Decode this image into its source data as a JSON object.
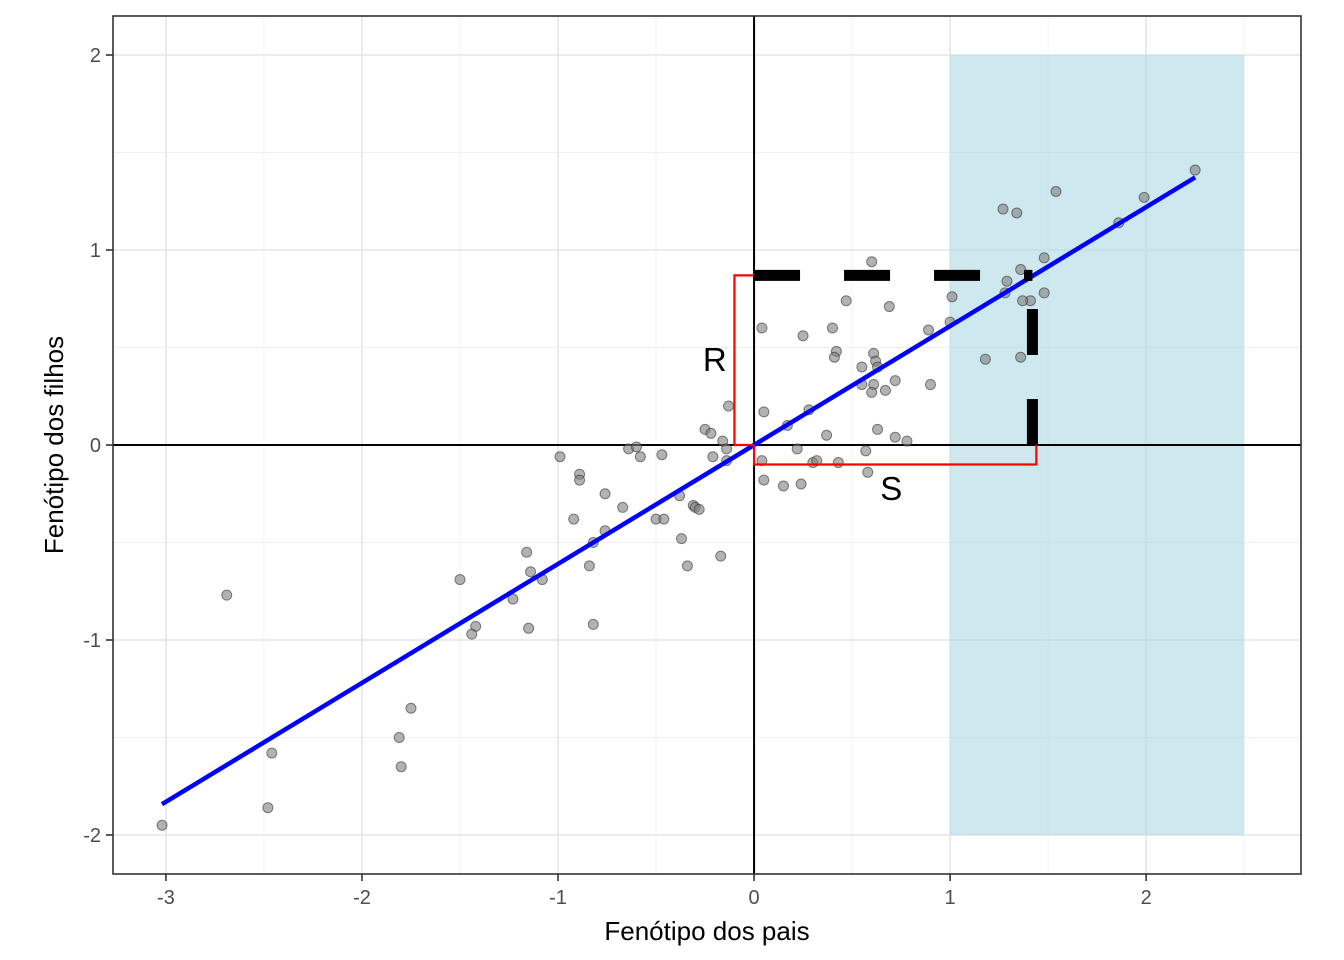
{
  "chart_data": {
    "type": "scatter",
    "xlabel": "Fenótipo dos pais",
    "ylabel": "Fenótipo dos filhos",
    "xlim": [
      -3.27,
      2.79
    ],
    "ylim": [
      -2.2,
      2.2
    ],
    "x_ticks": [
      -3,
      -2,
      -1,
      0,
      1,
      2
    ],
    "y_ticks": [
      -2,
      -1,
      0,
      1,
      2
    ],
    "x_tick_labels": [
      "-3",
      "-2",
      "-1",
      "0",
      "1",
      "2"
    ],
    "y_tick_labels": [
      "-2",
      "-1",
      "0",
      "1",
      "2"
    ],
    "grid": true,
    "colors": {
      "points": "#7f7f7f",
      "regression_line": "#0000ff",
      "selection_band": "#add8e6",
      "response_bracket": "#ff0000",
      "dashed_guides": "#000000",
      "axes_zero_lines": "#000000"
    },
    "selection_region": {
      "x": [
        1,
        2.5
      ],
      "y": [
        -2,
        2
      ]
    },
    "regression_line": {
      "slope": 0.61,
      "intercept": 0,
      "x": [
        -3.02,
        2.25
      ]
    },
    "dashed_guides": {
      "horizontal": {
        "y": 0.87,
        "x": [
          0,
          1.42
        ]
      },
      "vertical": {
        "x": 1.42,
        "y": [
          0,
          0.87
        ]
      }
    },
    "bracket_R": {
      "x": -0.1,
      "y": [
        0,
        0.87
      ]
    },
    "bracket_S": {
      "y": -0.1,
      "x": [
        0,
        1.44
      ]
    },
    "annotations": [
      {
        "text": "R",
        "x": -0.2,
        "y": 0.44
      },
      {
        "text": "S",
        "x": 0.7,
        "y": -0.22
      }
    ],
    "points": [
      [
        2.25,
        1.41
      ],
      [
        1.54,
        1.3
      ],
      [
        1.99,
        1.27
      ],
      [
        1.86,
        1.14
      ],
      [
        1.27,
        1.21
      ],
      [
        1.34,
        1.19
      ],
      [
        1.48,
        0.96
      ],
      [
        0.6,
        0.94
      ],
      [
        1.36,
        0.9
      ],
      [
        1.29,
        0.84
      ],
      [
        1.41,
        0.74
      ],
      [
        1.37,
        0.74
      ],
      [
        1.48,
        0.78
      ],
      [
        1.28,
        0.78
      ],
      [
        1.01,
        0.76
      ],
      [
        0.47,
        0.74
      ],
      [
        0.69,
        0.71
      ],
      [
        1.0,
        0.63
      ],
      [
        0.89,
        0.59
      ],
      [
        0.04,
        0.6
      ],
      [
        0.4,
        0.6
      ],
      [
        0.25,
        0.56
      ],
      [
        1.18,
        0.44
      ],
      [
        1.36,
        0.45
      ],
      [
        0.42,
        0.48
      ],
      [
        0.61,
        0.47
      ],
      [
        0.41,
        0.45
      ],
      [
        0.62,
        0.43
      ],
      [
        0.55,
        0.4
      ],
      [
        0.63,
        0.4
      ],
      [
        0.55,
        0.31
      ],
      [
        0.61,
        0.31
      ],
      [
        0.6,
        0.27
      ],
      [
        0.67,
        0.28
      ],
      [
        0.72,
        0.33
      ],
      [
        0.9,
        0.31
      ],
      [
        0.63,
        0.08
      ],
      [
        0.72,
        0.04
      ],
      [
        0.78,
        0.02
      ],
      [
        -0.13,
        0.2
      ],
      [
        0.05,
        0.17
      ],
      [
        0.28,
        0.18
      ],
      [
        0.17,
        0.1
      ],
      [
        -0.25,
        0.08
      ],
      [
        -0.22,
        0.06
      ],
      [
        -0.16,
        0.02
      ],
      [
        0.37,
        0.05
      ],
      [
        0.22,
        -0.02
      ],
      [
        -0.14,
        -0.02
      ],
      [
        0.57,
        -0.03
      ],
      [
        -0.64,
        -0.02
      ],
      [
        -0.6,
        -0.01
      ],
      [
        -0.21,
        -0.06
      ],
      [
        -0.14,
        -0.08
      ],
      [
        0.04,
        -0.08
      ],
      [
        0.3,
        -0.09
      ],
      [
        0.32,
        -0.08
      ],
      [
        0.43,
        -0.09
      ],
      [
        -0.99,
        -0.06
      ],
      [
        -0.58,
        -0.06
      ],
      [
        -0.47,
        -0.05
      ],
      [
        0.58,
        -0.14
      ],
      [
        0.05,
        -0.18
      ],
      [
        0.15,
        -0.21
      ],
      [
        0.24,
        -0.2
      ],
      [
        -0.89,
        -0.15
      ],
      [
        -0.89,
        -0.18
      ],
      [
        -0.76,
        -0.25
      ],
      [
        -0.38,
        -0.26
      ],
      [
        -0.67,
        -0.32
      ],
      [
        -0.31,
        -0.31
      ],
      [
        -0.3,
        -0.32
      ],
      [
        -0.28,
        -0.33
      ],
      [
        -0.92,
        -0.38
      ],
      [
        -0.5,
        -0.38
      ],
      [
        -0.46,
        -0.38
      ],
      [
        -0.76,
        -0.44
      ],
      [
        -0.82,
        -0.5
      ],
      [
        -0.37,
        -0.48
      ],
      [
        -1.16,
        -0.55
      ],
      [
        -0.17,
        -0.57
      ],
      [
        -0.84,
        -0.62
      ],
      [
        -0.34,
        -0.62
      ],
      [
        -1.14,
        -0.65
      ],
      [
        -1.08,
        -0.69
      ],
      [
        -1.5,
        -0.69
      ],
      [
        -1.23,
        -0.79
      ],
      [
        -2.69,
        -0.77
      ],
      [
        -1.15,
        -0.94
      ],
      [
        -1.42,
        -0.93
      ],
      [
        -1.44,
        -0.97
      ],
      [
        -0.82,
        -0.92
      ],
      [
        -1.75,
        -1.35
      ],
      [
        -1.81,
        -1.5
      ],
      [
        -1.8,
        -1.65
      ],
      [
        -2.46,
        -1.58
      ],
      [
        -2.48,
        -1.86
      ],
      [
        -3.02,
        -1.95
      ]
    ]
  }
}
